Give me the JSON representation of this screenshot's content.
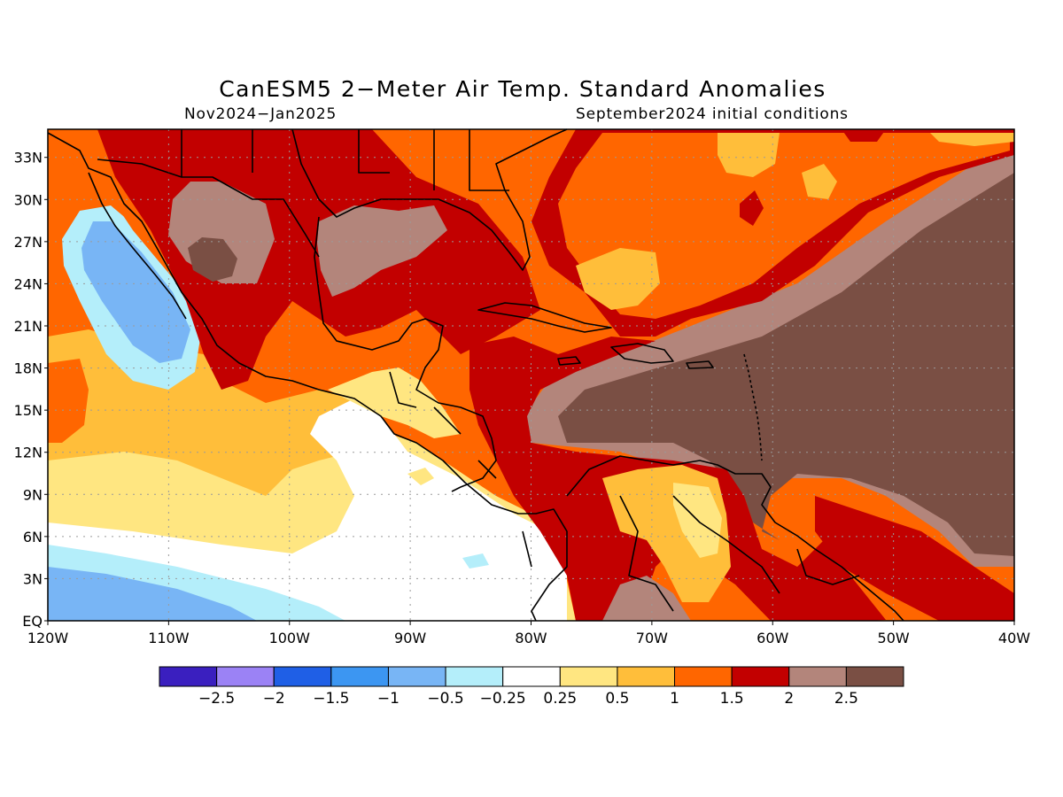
{
  "title": "CanESM5 2−Meter Air Temp. Standard Anomalies",
  "period": "Nov2024−Jan2025",
  "initial_conditions": "September2024 initial conditions",
  "map": {
    "lon_labels": [
      "120W",
      "110W",
      "100W",
      "90W",
      "80W",
      "70W",
      "60W",
      "50W",
      "40W"
    ],
    "lat_labels": [
      "EQ",
      "3N",
      "6N",
      "9N",
      "12N",
      "15N",
      "18N",
      "21N",
      "24N",
      "27N",
      "30N",
      "33N"
    ],
    "lon_range": [
      -120,
      -40
    ],
    "lat_range": [
      0,
      35
    ],
    "grid": "dotted"
  },
  "colorbar": {
    "colors": [
      "#3a1fbf",
      "#9b82f5",
      "#1f5fe6",
      "#3c96f2",
      "#78b5f5",
      "#b4eefa",
      "#ffffff",
      "#ffe681",
      "#ffbe3a",
      "#ff6600",
      "#c20000",
      "#b3857b",
      "#7a4f44"
    ],
    "labels": [
      "−2.5",
      "−2",
      "−1.5",
      "−1",
      "−0.5",
      "−0.25",
      "0.25",
      "0.5",
      "1",
      "1.5",
      "2",
      "2.5"
    ]
  },
  "chart_data": {
    "type": "heatmap",
    "title": "CanESM5 2−Meter Air Temp. Standard Anomalies",
    "subtitle": "Nov2024−Jan2025",
    "note": "September2024 initial conditions",
    "xlim": [
      -120,
      -40
    ],
    "ylim": [
      0,
      35
    ],
    "contour_levels": [
      -2.5,
      -2,
      -1.5,
      -1,
      -0.5,
      -0.25,
      0.25,
      0.5,
      1,
      1.5,
      2,
      2.5
    ]
  }
}
